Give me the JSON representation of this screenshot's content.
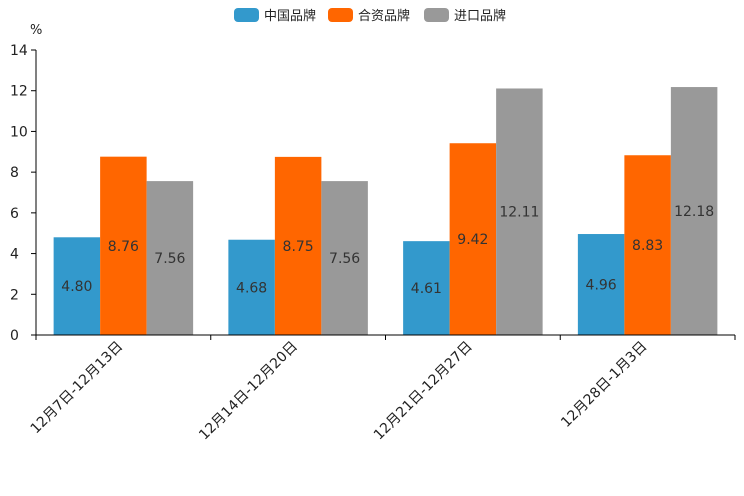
{
  "chart_data": {
    "type": "bar",
    "title": "",
    "xlabel": "",
    "ylabel": "%",
    "ylim": [
      0,
      14
    ],
    "yticks": [
      0,
      2,
      4,
      6,
      8,
      10,
      12,
      14
    ],
    "grid": false,
    "legend_position": "top-center",
    "categories": [
      "12月7日-12月13日",
      "12月14日-12月20日",
      "12月21日-12月27日",
      "12月28日-1月3日"
    ],
    "series": [
      {
        "name": "中国品牌",
        "color": "#3399cc",
        "values": [
          4.8,
          4.68,
          4.61,
          4.96
        ],
        "labels": [
          "4.80",
          "4.68",
          "4.61",
          "4.96"
        ]
      },
      {
        "name": "合资品牌",
        "color": "#ff6600",
        "values": [
          8.76,
          8.75,
          9.42,
          8.83
        ],
        "labels": [
          "8.76",
          "8.75",
          "9.42",
          "8.83"
        ]
      },
      {
        "name": "进口品牌",
        "color": "#999999",
        "values": [
          7.56,
          7.56,
          12.11,
          12.18
        ],
        "labels": [
          "7.56",
          "7.56",
          "12.11",
          "12.18"
        ]
      }
    ]
  }
}
